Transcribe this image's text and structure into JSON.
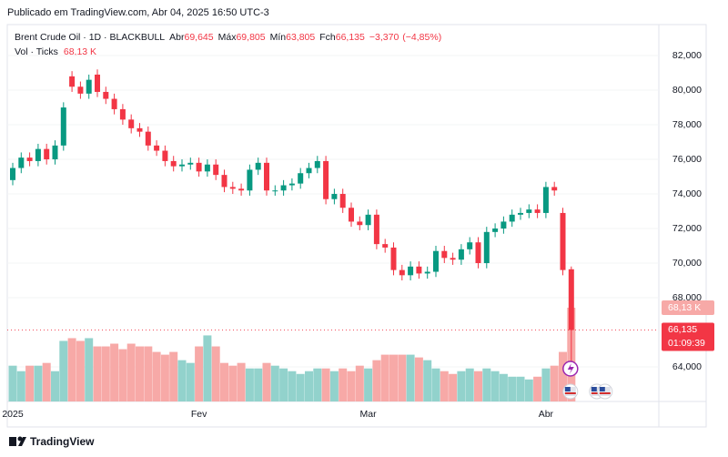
{
  "published": "Publicado em TradingView.com, Abr 04, 2025 16:50 UTC-3",
  "brand": "TradingView",
  "chart_data": {
    "type": "candlestick",
    "header": {
      "symbol": "Brent Crude Oil · 1D · BLACKBULL",
      "open_name": "Abr",
      "open": {
        "value": 69645,
        "label": "69,645"
      },
      "high_name": "Máx",
      "high": {
        "value": 69805,
        "label": "69,805"
      },
      "low_name": "Mín",
      "low": {
        "value": 63805,
        "label": "63,805"
      },
      "close_name": "Fch",
      "close": {
        "value": 66135,
        "label": "66,135"
      },
      "change": {
        "value": -3370,
        "label": "−3,370"
      },
      "change_pct": {
        "value": -4.85,
        "label": "(−4,85%)"
      }
    },
    "volume_title": "Vol · Ticks",
    "volume_last": {
      "value": 68130,
      "label": "68,13 K"
    },
    "last_price": {
      "value": 66135,
      "label": "66,135"
    },
    "countdown": "01:09:39",
    "up_color": "#089981",
    "down_color": "#f23645",
    "volume_up_color": "#92d2cc",
    "volume_down_color": "#f7a9a7",
    "ylim": [
      62000,
      83740
    ],
    "yticks": [
      {
        "value": 64000,
        "label": "64,000"
      },
      {
        "value": 68000,
        "label": "68,000"
      },
      {
        "value": 70000,
        "label": "70,000"
      },
      {
        "value": 72000,
        "label": "72,000"
      },
      {
        "value": 74000,
        "label": "74,000"
      },
      {
        "value": 76000,
        "label": "76,000"
      },
      {
        "value": 78000,
        "label": "78,000"
      },
      {
        "value": 80000,
        "label": "80,000"
      },
      {
        "value": 82000,
        "label": "82,000"
      }
    ],
    "categories": [
      "2025",
      null,
      null,
      null,
      null,
      null,
      null,
      null,
      null,
      null,
      null,
      null,
      null,
      null,
      null,
      null,
      null,
      null,
      null,
      null,
      null,
      null,
      "Fev",
      null,
      null,
      null,
      null,
      null,
      null,
      null,
      null,
      null,
      null,
      null,
      null,
      null,
      null,
      null,
      null,
      null,
      null,
      null,
      "Mar",
      null,
      null,
      null,
      null,
      null,
      null,
      null,
      null,
      null,
      null,
      null,
      null,
      null,
      null,
      null,
      null,
      null,
      null,
      null,
      null,
      "Abr",
      null,
      null,
      null
    ],
    "open": [
      74800,
      75500,
      76100,
      75900,
      76600,
      76000,
      76800,
      80800,
      80200,
      79800,
      80900,
      79900,
      79500,
      78900,
      78300,
      77800,
      77600,
      76800,
      76500,
      75900,
      75600,
      75700,
      75800,
      75300,
      75700,
      75100,
      74400,
      74300,
      74200,
      75400,
      75800,
      74200,
      74200,
      74500,
      74600,
      75200,
      75500,
      75900,
      73700,
      74000,
      73200,
      72400,
      72200,
      72800,
      71100,
      70900,
      69600,
      69300,
      69800,
      69400,
      69500,
      70700,
      70300,
      70200,
      70800,
      71200,
      70000,
      71800,
      72000,
      72400,
      72800,
      72900,
      73100,
      72900,
      74400,
      72900,
      69645
    ],
    "high": [
      75800,
      76400,
      76400,
      76900,
      76900,
      77100,
      79300,
      81100,
      80500,
      80900,
      81200,
      80200,
      79800,
      79200,
      78600,
      78100,
      77900,
      77100,
      76800,
      76200,
      76000,
      76100,
      76100,
      76000,
      76000,
      75400,
      74700,
      74600,
      75700,
      76100,
      76100,
      74500,
      74800,
      74900,
      75500,
      75800,
      76200,
      76200,
      74300,
      74300,
      73500,
      72700,
      73100,
      73100,
      71400,
      71200,
      69900,
      70100,
      70100,
      69800,
      71000,
      71000,
      70600,
      71100,
      71500,
      71500,
      72100,
      72300,
      72700,
      73100,
      73200,
      73400,
      73400,
      74700,
      74700,
      73200,
      69805
    ],
    "low": [
      74500,
      75200,
      75600,
      75600,
      75700,
      75700,
      76500,
      79900,
      79500,
      79500,
      79600,
      79200,
      78600,
      78000,
      77500,
      77300,
      76500,
      76200,
      75600,
      75300,
      75300,
      75400,
      75000,
      75000,
      74800,
      74100,
      74000,
      73900,
      73900,
      75100,
      73900,
      73900,
      73900,
      74200,
      74300,
      74900,
      75200,
      73400,
      73400,
      72900,
      72100,
      71900,
      71900,
      70800,
      70600,
      69300,
      69000,
      69000,
      69100,
      69100,
      69200,
      70000,
      69900,
      69900,
      70500,
      69700,
      69700,
      71500,
      71700,
      72100,
      72500,
      72600,
      72600,
      72600,
      73900,
      69300,
      63805
    ],
    "close": [
      75500,
      76100,
      75900,
      76600,
      76000,
      76800,
      79000,
      80200,
      79800,
      80600,
      79900,
      79500,
      78900,
      78300,
      77800,
      77600,
      76800,
      76500,
      75900,
      75600,
      75700,
      75800,
      75300,
      75700,
      75100,
      74400,
      74300,
      74200,
      75400,
      75800,
      74200,
      74200,
      74500,
      74600,
      75200,
      75500,
      75900,
      73700,
      74000,
      73200,
      72400,
      72200,
      72800,
      71100,
      70900,
      69600,
      69300,
      69800,
      69400,
      69500,
      70700,
      70300,
      70200,
      70800,
      71200,
      70000,
      71800,
      72000,
      72400,
      72800,
      72900,
      73100,
      72900,
      74400,
      74200,
      69600,
      66135
    ],
    "volume": [
      26000,
      22000,
      26000,
      26000,
      28000,
      22000,
      44000,
      46000,
      44000,
      46000,
      40000,
      40000,
      42000,
      38000,
      42000,
      40000,
      40000,
      36000,
      34000,
      36000,
      30000,
      28000,
      40000,
      48000,
      40000,
      28000,
      26000,
      28000,
      24000,
      24000,
      28000,
      26000,
      24000,
      22000,
      20000,
      22000,
      24000,
      24000,
      22000,
      24000,
      22000,
      26000,
      24000,
      30000,
      34000,
      34000,
      34000,
      34000,
      32000,
      30000,
      24000,
      22000,
      20000,
      22000,
      24000,
      22000,
      24000,
      22000,
      20000,
      18000,
      18000,
      16000,
      18000,
      24000,
      26000,
      36000,
      68130
    ]
  }
}
